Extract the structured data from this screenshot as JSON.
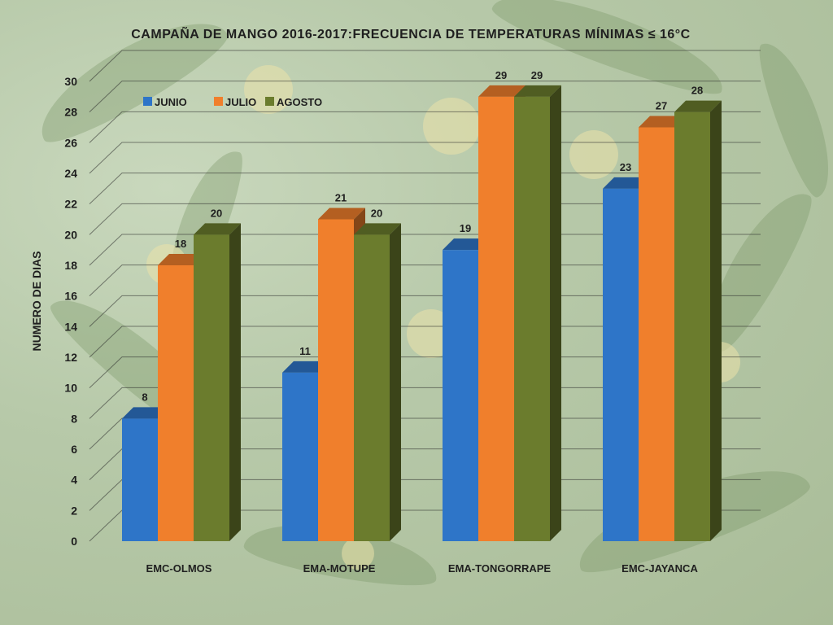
{
  "chart_data": {
    "type": "bar",
    "title": "CAMPAÑA DE MANGO 2016-2017:FRECUENCIA DE TEMPERATURAS MÍNIMAS ≤ 16°C",
    "xlabel": "",
    "ylabel": "NUMERO DE DIAS",
    "categories": [
      "EMC-OLMOS",
      "EMA-MOTUPE",
      "EMA-TONGORRAPE",
      "EMC-JAYANCA"
    ],
    "series": [
      {
        "name": "JUNIO",
        "values": [
          8,
          11,
          19,
          23
        ],
        "color": "#2e75c8"
      },
      {
        "name": "JULIO",
        "values": [
          18,
          21,
          29,
          27
        ],
        "color": "#f07f2c"
      },
      {
        "name": "AGOSTO",
        "values": [
          20,
          20,
          29,
          28
        ],
        "color": "#6b7c2d"
      }
    ],
    "ylim": [
      0,
      30
    ],
    "yticks": [
      0,
      2,
      4,
      6,
      8,
      10,
      12,
      14,
      16,
      18,
      20,
      22,
      24,
      26,
      28,
      30
    ],
    "grid": true,
    "legend_position": "top-left",
    "background": "mango-tree-photo"
  }
}
